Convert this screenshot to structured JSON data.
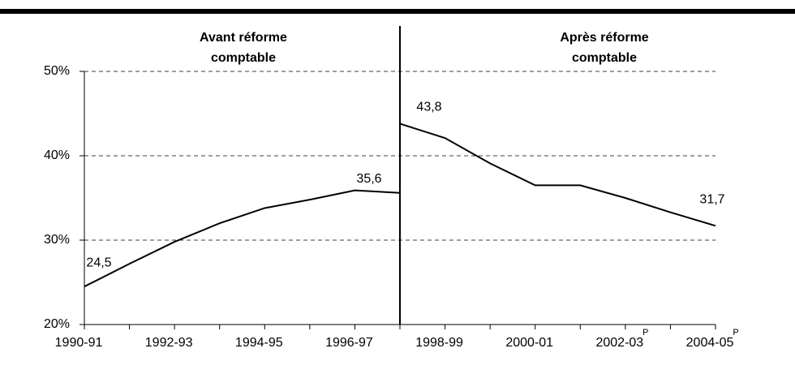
{
  "chart_data": {
    "type": "line",
    "categories": [
      "1990-91",
      null,
      "1992-93",
      null,
      "1994-95",
      null,
      "1996-97",
      null,
      "1998-99",
      null,
      "2000-01",
      null,
      "2002-03",
      null,
      "2004-05"
    ],
    "series": [
      {
        "name": "Avant réforme comptable",
        "color": "#000000",
        "values": [
          24.5,
          27.2,
          29.8,
          32.0,
          33.8,
          34.8,
          35.9,
          35.6,
          null,
          null,
          null,
          null,
          null,
          null,
          null
        ],
        "value_labels": [
          "24,5",
          null,
          null,
          null,
          null,
          null,
          null,
          "35,6",
          null,
          null,
          null,
          null,
          null,
          null,
          null
        ]
      },
      {
        "name": "Après réforme comptable",
        "color": "#000000",
        "values": [
          null,
          null,
          null,
          null,
          null,
          null,
          null,
          43.8,
          42.1,
          39.1,
          36.5,
          36.5,
          35.0,
          33.3,
          31.7
        ],
        "value_labels": [
          null,
          null,
          null,
          null,
          null,
          null,
          null,
          "43,8",
          null,
          null,
          null,
          null,
          null,
          null,
          "31,7"
        ]
      }
    ],
    "annotations": [
      {
        "lines": [
          "Avant réforme",
          "comptable"
        ]
      },
      {
        "lines": [
          "Après réforme",
          "comptable"
        ]
      }
    ],
    "projection_marks": [
      {
        "category": 12,
        "text": "P"
      },
      {
        "category": 14,
        "text": "P"
      }
    ],
    "ylim": [
      20,
      50
    ],
    "yticks": [
      {
        "value": 20,
        "label": "20%"
      },
      {
        "value": 30,
        "label": "30%"
      },
      {
        "value": 40,
        "label": "40%"
      },
      {
        "value": 50,
        "label": "50%"
      }
    ],
    "grid": true
  }
}
